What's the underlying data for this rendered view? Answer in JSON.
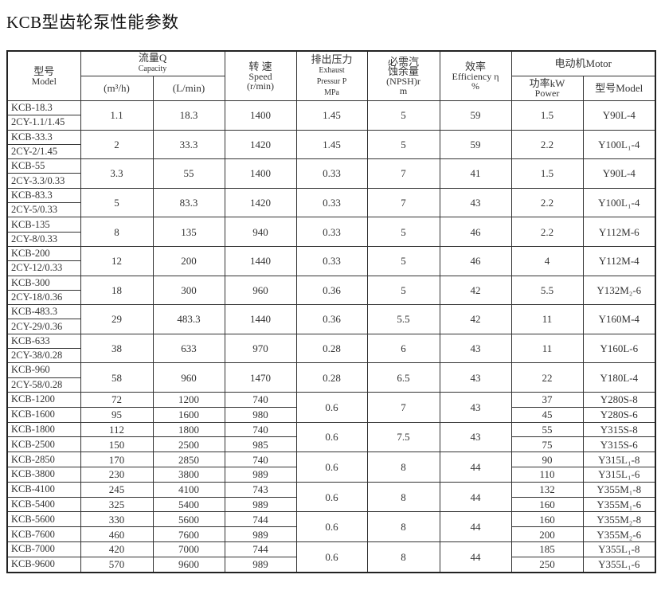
{
  "title": "KCB型齿轮泵性能参数",
  "header": {
    "model_cn": "型号",
    "model_en": "Model",
    "capacity_cn": "流量Q",
    "capacity_en": "Capacity",
    "capacity_m3h": "(m³/h)",
    "capacity_lmin": "(L/min)",
    "speed_cn": "转 速",
    "speed_en": "Speed",
    "speed_unit": "(r/min)",
    "pressure_cn": "排出压力",
    "pressure_en1": "Exhaust",
    "pressure_en2": "Pressur P",
    "pressure_unit": "MPa",
    "npsh_cn1": "必需汽",
    "npsh_cn2": "蚀余量",
    "npsh_en": "(NPSH)r",
    "npsh_unit": "m",
    "eff_cn": "效率",
    "eff_en": "Efficiency η",
    "eff_unit": "%",
    "motor": "电动机Motor",
    "power_cn": "功率kW",
    "power_en": "Power",
    "motor_model": "型号Model"
  },
  "section1": [
    {
      "models": [
        "KCB-18.3",
        "2CY-1.1/1.45"
      ],
      "m3h": "1.1",
      "lmin": "18.3",
      "speed": "1400",
      "pressure": "1.45",
      "npsh": "5",
      "eff": "59",
      "power": "1.5",
      "motor": "Y90L-4"
    },
    {
      "models": [
        "KCB-33.3",
        "2CY-2/1.45"
      ],
      "m3h": "2",
      "lmin": "33.3",
      "speed": "1420",
      "pressure": "1.45",
      "npsh": "5",
      "eff": "59",
      "power": "2.2",
      "motor": "Y100L₁-4"
    },
    {
      "models": [
        "KCB-55",
        "2CY-3.3/0.33"
      ],
      "m3h": "3.3",
      "lmin": "55",
      "speed": "1400",
      "pressure": "0.33",
      "npsh": "7",
      "eff": "41",
      "power": "1.5",
      "motor": "Y90L-4"
    },
    {
      "models": [
        "KCB-83.3",
        "2CY-5/0.33"
      ],
      "m3h": "5",
      "lmin": "83.3",
      "speed": "1420",
      "pressure": "0.33",
      "npsh": "7",
      "eff": "43",
      "power": "2.2",
      "motor": "Y100L₁-4"
    },
    {
      "models": [
        "KCB-135",
        "2CY-8/0.33"
      ],
      "m3h": "8",
      "lmin": "135",
      "speed": "940",
      "pressure": "0.33",
      "npsh": "5",
      "eff": "46",
      "power": "2.2",
      "motor": "Y112M-6"
    },
    {
      "models": [
        "KCB-200",
        "2CY-12/0.33"
      ],
      "m3h": "12",
      "lmin": "200",
      "speed": "1440",
      "pressure": "0.33",
      "npsh": "5",
      "eff": "46",
      "power": "4",
      "motor": "Y112M-4"
    },
    {
      "models": [
        "KCB-300",
        "2CY-18/0.36"
      ],
      "m3h": "18",
      "lmin": "300",
      "speed": "960",
      "pressure": "0.36",
      "npsh": "5",
      "eff": "42",
      "power": "5.5",
      "motor": "Y132M₂-6"
    },
    {
      "models": [
        "KCB-483.3",
        "2CY-29/0.36"
      ],
      "m3h": "29",
      "lmin": "483.3",
      "speed": "1440",
      "pressure": "0.36",
      "npsh": "5.5",
      "eff": "42",
      "power": "11",
      "motor": "Y160M-4"
    },
    {
      "models": [
        "KCB-633",
        "2CY-38/0.28"
      ],
      "m3h": "38",
      "lmin": "633",
      "speed": "970",
      "pressure": "0.28",
      "npsh": "6",
      "eff": "43",
      "power": "11",
      "motor": "Y160L-6"
    },
    {
      "models": [
        "KCB-960",
        "2CY-58/0.28"
      ],
      "m3h": "58",
      "lmin": "960",
      "speed": "1470",
      "pressure": "0.28",
      "npsh": "6.5",
      "eff": "43",
      "power": "22",
      "motor": "Y180L-4"
    }
  ],
  "section2": [
    {
      "pressure": "0.6",
      "npsh": "7",
      "eff": "43",
      "rows": [
        {
          "model": "KCB-1200",
          "m3h": "72",
          "lmin": "1200",
          "speed": "740",
          "power": "37",
          "motor": "Y280S-8"
        },
        {
          "model": "KCB-1600",
          "m3h": "95",
          "lmin": "1600",
          "speed": "980",
          "power": "45",
          "motor": "Y280S-6"
        }
      ]
    },
    {
      "pressure": "0.6",
      "npsh": "7.5",
      "eff": "43",
      "rows": [
        {
          "model": "KCB-1800",
          "m3h": "112",
          "lmin": "1800",
          "speed": "740",
          "power": "55",
          "motor": "Y315S-8"
        },
        {
          "model": "KCB-2500",
          "m3h": "150",
          "lmin": "2500",
          "speed": "985",
          "power": "75",
          "motor": "Y315S-6"
        }
      ]
    },
    {
      "pressure": "0.6",
      "npsh": "8",
      "eff": "44",
      "rows": [
        {
          "model": "KCB-2850",
          "m3h": "170",
          "lmin": "2850",
          "speed": "740",
          "power": "90",
          "motor": "Y315L₁-8"
        },
        {
          "model": "KCB-3800",
          "m3h": "230",
          "lmin": "3800",
          "speed": "989",
          "power": "110",
          "motor": "Y315L₁-6"
        }
      ]
    },
    {
      "pressure": "0.6",
      "npsh": "8",
      "eff": "44",
      "rows": [
        {
          "model": "KCB-4100",
          "m3h": "245",
          "lmin": "4100",
          "speed": "743",
          "power": "132",
          "motor": "Y355M₁-8"
        },
        {
          "model": "KCB-5400",
          "m3h": "325",
          "lmin": "5400",
          "speed": "989",
          "power": "160",
          "motor": "Y355M₁-6"
        }
      ]
    },
    {
      "pressure": "0.6",
      "npsh": "8",
      "eff": "44",
      "rows": [
        {
          "model": "KCB-5600",
          "m3h": "330",
          "lmin": "5600",
          "speed": "744",
          "power": "160",
          "motor": "Y355M₂-8"
        },
        {
          "model": "KCB-7600",
          "m3h": "460",
          "lmin": "7600",
          "speed": "989",
          "power": "200",
          "motor": "Y355M₂-6"
        }
      ]
    },
    {
      "pressure": "0.6",
      "npsh": "8",
      "eff": "44",
      "rows": [
        {
          "model": "KCB-7000",
          "m3h": "420",
          "lmin": "7000",
          "speed": "744",
          "power": "185",
          "motor": "Y355L₁-8"
        },
        {
          "model": "KCB-9600",
          "m3h": "570",
          "lmin": "9600",
          "speed": "989",
          "power": "250",
          "motor": "Y355L₁-6"
        }
      ]
    }
  ]
}
